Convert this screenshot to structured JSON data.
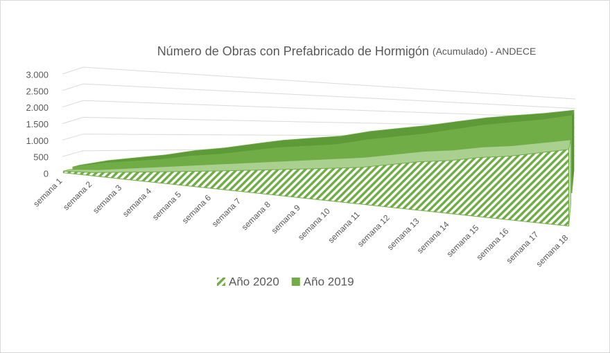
{
  "chart_data": {
    "type": "area3d",
    "title": "Número de Obras con Prefabricado de Hormigón",
    "title_note": "(Acumulado) - ANDECE",
    "categories": [
      "semana 1",
      "semana 2",
      "semana 3",
      "semana 4",
      "semana 5",
      "semana 6",
      "semana 7",
      "semana 8",
      "semana 9",
      "semana 10",
      "semana 11",
      "semana 12",
      "semana 13",
      "semana 14",
      "semana 15",
      "semana 16",
      "semana 17",
      "semana 18"
    ],
    "series": [
      {
        "name": "Año 2020",
        "color": "#70ad47",
        "pattern": "hatch",
        "values": [
          50,
          100,
          200,
          300,
          400,
          500,
          600,
          700,
          800,
          900,
          1000,
          1150,
          1300,
          1400,
          1550,
          1650,
          1800,
          1950
        ]
      },
      {
        "name": "Año 2019",
        "color": "#70ad47",
        "pattern": "solid",
        "values": [
          100,
          250,
          350,
          450,
          600,
          700,
          850,
          1000,
          1100,
          1200,
          1400,
          1550,
          1700,
          1900,
          2100,
          2250,
          2400,
          2600
        ]
      }
    ],
    "ylim": [
      0,
      3000
    ],
    "yticks": [
      0,
      500,
      {
        "value": 1000,
        "label": "1.000"
      },
      {
        "value": 1500,
        "label": "1.500"
      },
      {
        "value": 2000,
        "label": "2.000"
      },
      {
        "value": 2500,
        "label": "2.500"
      },
      {
        "value": 3000,
        "label": "3.000"
      }
    ],
    "grid": true,
    "legend": "bottom"
  }
}
